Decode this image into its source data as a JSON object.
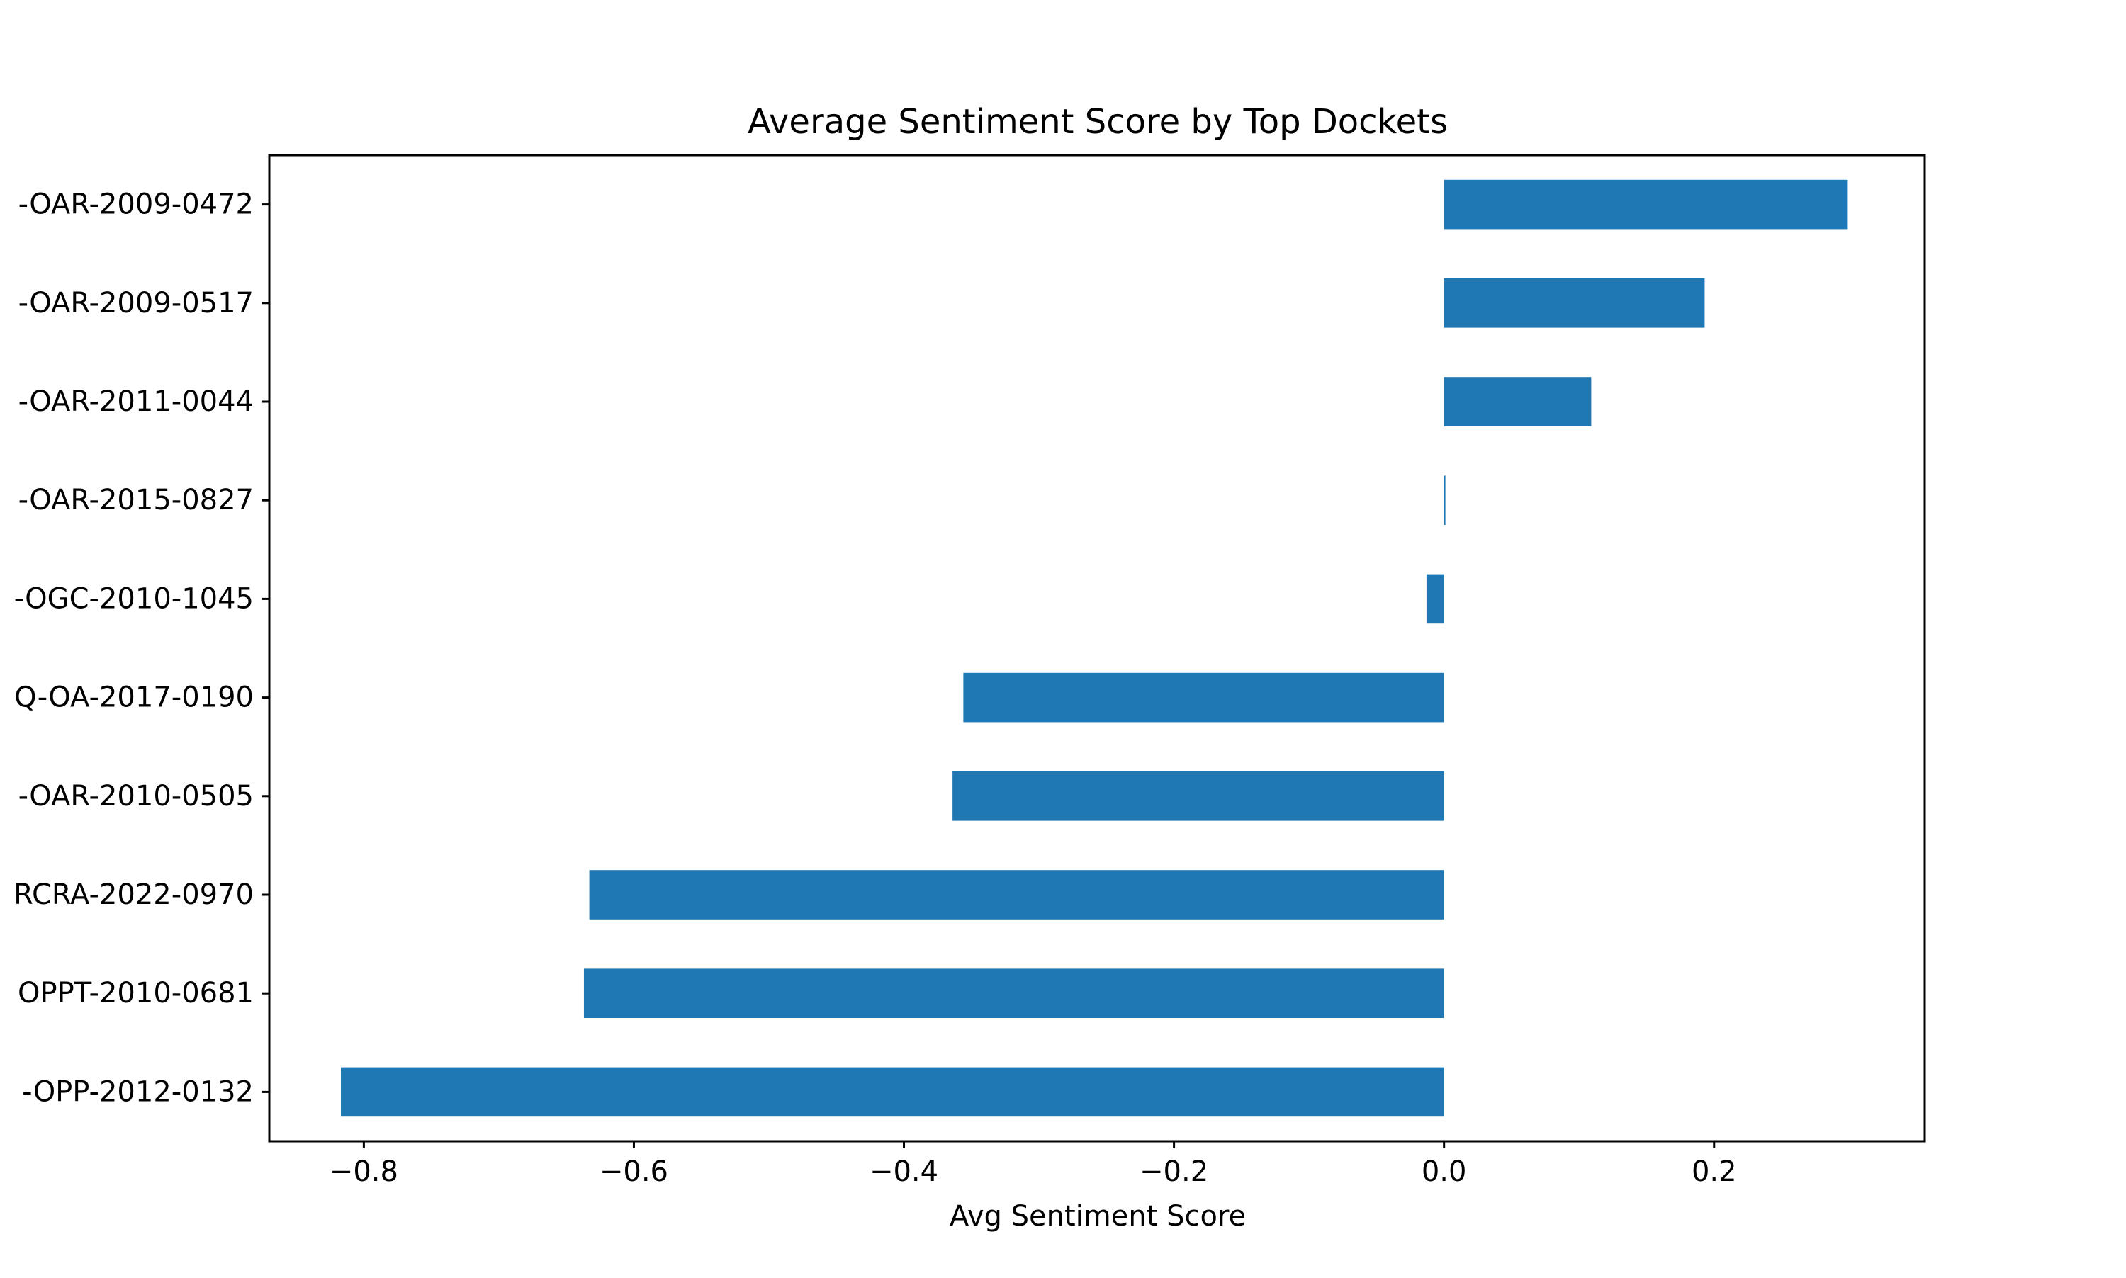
{
  "colors": {
    "bar": "#1f77b4",
    "axis": "#000000",
    "background": "#ffffff"
  },
  "chart_data": {
    "type": "bar",
    "orientation": "horizontal",
    "title": "Average Sentiment Score by Top Dockets",
    "xlabel": "Avg Sentiment Score",
    "ylabel": "",
    "xlim": [
      -0.87,
      0.356
    ],
    "grid": false,
    "legend": "none",
    "categories": [
      "-OAR-2009-0472",
      "-OAR-2009-0517",
      "-OAR-2011-0044",
      "-OAR-2015-0827",
      "-OGC-2010-1045",
      "Q-OA-2017-0190",
      "-OAR-2010-0505",
      "RCRA-2022-0970",
      "OPPT-2010-0681",
      "-OPP-2012-0132"
    ],
    "values": [
      0.299,
      0.193,
      0.109,
      0.001,
      -0.013,
      -0.356,
      -0.364,
      -0.633,
      -0.637,
      -0.817
    ],
    "xticks": [
      -0.8,
      -0.6,
      -0.4,
      -0.2,
      0.0,
      0.2
    ],
    "xtick_labels": [
      "−0.8",
      "−0.6",
      "−0.4",
      "−0.2",
      "0.0",
      "0.2"
    ]
  }
}
